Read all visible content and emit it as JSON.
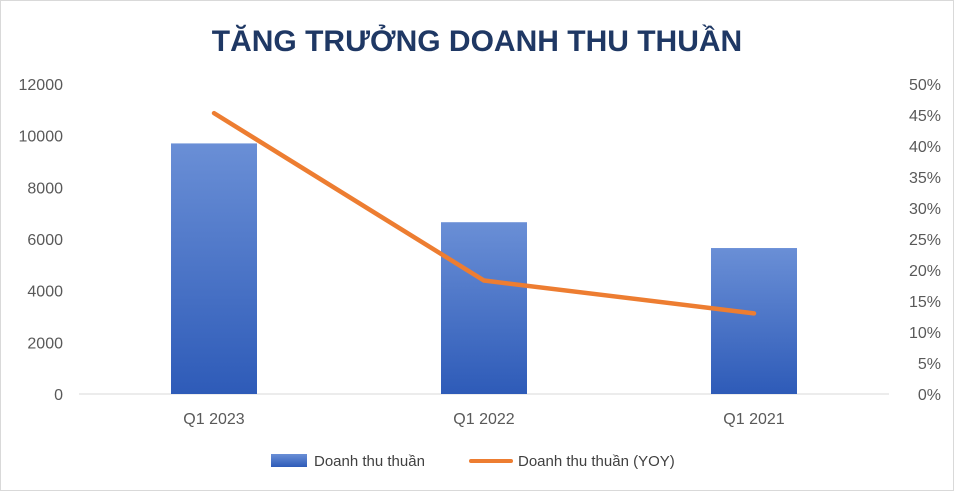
{
  "chart_data": {
    "type": "bar",
    "title": "TĂNG TRƯỞNG DOANH THU THUẦN",
    "categories": [
      "Q1 2023",
      "Q1 2022",
      "Q1 2021"
    ],
    "series": [
      {
        "name": "Doanh thu thuần",
        "type": "bar",
        "axis": "left",
        "values": [
          9700,
          6650,
          5650
        ],
        "color": "#4472c4"
      },
      {
        "name": "Doanh thu thuần (YOY)",
        "type": "line",
        "axis": "right",
        "values": [
          0.453,
          0.183,
          0.13
        ],
        "color": "#ed7d31"
      }
    ],
    "y_left": {
      "range": [
        0,
        12000
      ],
      "ticks": [
        "0",
        "2000",
        "4000",
        "6000",
        "8000",
        "10000",
        "12000"
      ]
    },
    "y_right": {
      "range": [
        0,
        0.5
      ],
      "ticks": [
        "0%",
        "5%",
        "10%",
        "15%",
        "20%",
        "25%",
        "30%",
        "35%",
        "40%",
        "45%",
        "50%"
      ]
    },
    "grid": false,
    "legend_position": "bottom"
  }
}
